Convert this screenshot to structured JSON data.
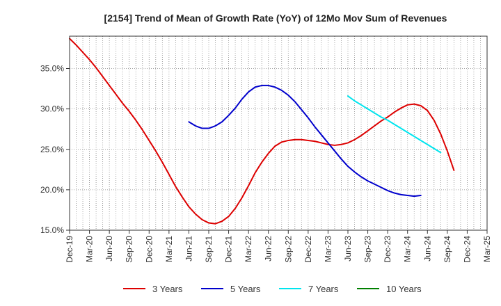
{
  "chart_data": {
    "type": "line",
    "title": "[2154]  Trend of Mean of Growth Rate (YoY) of 12Mo Mov Sum of Revenues",
    "xlabel": "",
    "ylabel": "",
    "x_categories": [
      "Dec-19",
      "Jan-20",
      "Feb-20",
      "Mar-20",
      "Apr-20",
      "May-20",
      "Jun-20",
      "Jul-20",
      "Aug-20",
      "Sep-20",
      "Oct-20",
      "Nov-20",
      "Dec-20",
      "Jan-21",
      "Feb-21",
      "Mar-21",
      "Apr-21",
      "May-21",
      "Jun-21",
      "Jul-21",
      "Aug-21",
      "Sep-21",
      "Oct-21",
      "Nov-21",
      "Dec-21",
      "Jan-22",
      "Feb-22",
      "Mar-22",
      "Apr-22",
      "May-22",
      "Jun-22",
      "Jul-22",
      "Aug-22",
      "Sep-22",
      "Oct-22",
      "Nov-22",
      "Dec-22",
      "Jan-23",
      "Feb-23",
      "Mar-23",
      "Apr-23",
      "May-23",
      "Jun-23",
      "Jul-23",
      "Aug-23",
      "Sep-23",
      "Oct-23",
      "Nov-23",
      "Dec-23",
      "Jan-24",
      "Feb-24",
      "Mar-24",
      "Apr-24",
      "May-24",
      "Jun-24",
      "Jul-24",
      "Aug-24",
      "Sep-24",
      "Oct-24",
      "Nov-24",
      "Dec-24",
      "Jan-25",
      "Feb-25",
      "Mar-25"
    ],
    "x_tick_labels": [
      "Dec-19",
      "Mar-20",
      "Jun-20",
      "Sep-20",
      "Dec-20",
      "Mar-21",
      "Jun-21",
      "Sep-21",
      "Dec-21",
      "Mar-22",
      "Jun-22",
      "Sep-22",
      "Dec-22",
      "Mar-23",
      "Jun-23",
      "Sep-23",
      "Dec-23",
      "Mar-24",
      "Jun-24",
      "Sep-24",
      "Dec-24",
      "Mar-25"
    ],
    "y_tick_labels": [
      "15.0%",
      "20.0%",
      "25.0%",
      "30.0%",
      "35.0%"
    ],
    "ylim": [
      15.0,
      39.0
    ],
    "grid": true,
    "legend_position": "bottom",
    "series": [
      {
        "name": "3 Years",
        "color": "#dd0000",
        "start_index": 0,
        "values": [
          38.7,
          37.9,
          37.0,
          36.1,
          35.1,
          34.0,
          32.9,
          31.8,
          30.7,
          29.7,
          28.6,
          27.4,
          26.1,
          24.8,
          23.4,
          21.9,
          20.4,
          19.1,
          17.9,
          17.0,
          16.3,
          15.9,
          15.8,
          16.1,
          16.7,
          17.7,
          19.0,
          20.5,
          22.1,
          23.4,
          24.5,
          25.4,
          25.9,
          26.1,
          26.2,
          26.2,
          26.1,
          26.0,
          25.8,
          25.6,
          25.5,
          25.6,
          25.8,
          26.2,
          26.7,
          27.3,
          27.9,
          28.5,
          29.0,
          29.6,
          30.1,
          30.5,
          30.6,
          30.4,
          29.8,
          28.6,
          26.9,
          24.8,
          22.4
        ]
      },
      {
        "name": "5 Years",
        "color": "#0000cc",
        "start_index": 18,
        "values": [
          28.4,
          27.9,
          27.6,
          27.6,
          27.9,
          28.4,
          29.2,
          30.1,
          31.2,
          32.1,
          32.7,
          32.9,
          32.9,
          32.7,
          32.3,
          31.7,
          30.9,
          29.9,
          28.9,
          27.8,
          26.8,
          25.8,
          24.8,
          23.8,
          22.9,
          22.2,
          21.6,
          21.1,
          20.7,
          20.3,
          19.9,
          19.6,
          19.4,
          19.3,
          19.2,
          19.3
        ]
      },
      {
        "name": "7 Years",
        "color": "#00e5ee",
        "start_index": 42,
        "values": [
          31.6,
          31.0,
          30.5,
          30.0,
          29.5,
          29.0,
          28.6,
          28.1,
          27.6,
          27.1,
          26.6,
          26.1,
          25.6,
          25.1,
          24.6
        ]
      },
      {
        "name": "10 Years",
        "color": "#008000",
        "start_index": 0,
        "values": []
      }
    ]
  }
}
